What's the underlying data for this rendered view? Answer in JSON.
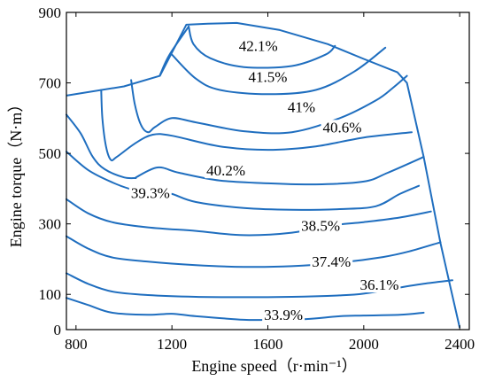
{
  "chart_data": {
    "type": "contour",
    "xlabel": "Engine speed（r·min⁻¹）",
    "ylabel": "Engine torque（N·m）",
    "xlim": [
      760,
      2440
    ],
    "ylim": [
      0,
      900
    ],
    "x_ticks": [
      "800",
      "1200",
      "1600",
      "2000",
      "2400"
    ],
    "y_ticks": [
      "0",
      "100",
      "300",
      "500",
      "700",
      "900"
    ],
    "x_tick_values": [
      800,
      1200,
      1600,
      2000,
      2400
    ],
    "y_tick_values": [
      0,
      100,
      300,
      500,
      700,
      900
    ],
    "line_color": "#1f6ebf",
    "boundary": [
      [
        760,
        664
      ],
      [
        1000,
        690
      ],
      [
        1150,
        720
      ],
      [
        1260,
        865
      ],
      [
        1350,
        868
      ],
      [
        1470,
        870
      ],
      [
        1650,
        850
      ],
      [
        1850,
        810
      ],
      [
        2000,
        768
      ],
      [
        2140,
        730
      ],
      [
        2180,
        700
      ],
      [
        2250,
        490
      ],
      [
        2320,
        245
      ],
      [
        2360,
        125
      ],
      [
        2400,
        5
      ]
    ],
    "series": [
      {
        "label": "42.1%",
        "label_at": [
          1560,
          806
        ],
        "points": [
          [
            1270,
            860
          ],
          [
            1290,
            810
          ],
          [
            1360,
            770
          ],
          [
            1500,
            745
          ],
          [
            1700,
            748
          ],
          [
            1840,
            780
          ],
          [
            1880,
            805
          ]
        ]
      },
      {
        "label": "41.5%",
        "label_at": [
          1600,
          718
        ],
        "points": [
          [
            1150,
            722
          ],
          [
            1190,
            780
          ],
          [
            1270,
            860
          ]
        ]
      },
      {
        "label": "41.5%",
        "label_at": [
          1600,
          718
        ],
        "points": [
          [
            1200,
            780
          ],
          [
            1300,
            712
          ],
          [
            1400,
            680
          ],
          [
            1600,
            668
          ],
          [
            1800,
            680
          ],
          [
            1960,
            732
          ],
          [
            2090,
            800
          ]
        ]
      },
      {
        "label": "41%",
        "label_at": [
          1740,
          632
        ],
        "points": [
          [
            1030,
            708
          ],
          [
            1045,
            640
          ],
          [
            1070,
            582
          ],
          [
            1100,
            560
          ],
          [
            1130,
            575
          ],
          [
            1200,
            600
          ],
          [
            1300,
            588
          ],
          [
            1500,
            563
          ],
          [
            1700,
            560
          ],
          [
            1900,
            600
          ],
          [
            2050,
            650
          ],
          [
            2120,
            685
          ],
          [
            2180,
            720
          ]
        ]
      },
      {
        "label": "40.6%",
        "label_at": [
          1910,
          575
        ],
        "points": [
          [
            905,
            680
          ],
          [
            910,
            600
          ],
          [
            925,
            520
          ],
          [
            945,
            482
          ],
          [
            970,
            490
          ],
          [
            1050,
            530
          ],
          [
            1120,
            553
          ],
          [
            1200,
            550
          ],
          [
            1400,
            520
          ],
          [
            1600,
            510
          ],
          [
            1800,
            520
          ],
          [
            2000,
            545
          ],
          [
            2200,
            560
          ]
        ]
      },
      {
        "label": "40.2%",
        "label_at": [
          1425,
          452
        ],
        "points": [
          [
            760,
            610
          ],
          [
            820,
            556
          ],
          [
            870,
            490
          ],
          [
            920,
            455
          ],
          [
            1000,
            432
          ],
          [
            1050,
            430
          ]
        ]
      },
      {
        "label": "40.2%",
        "label_at": [
          1425,
          452
        ],
        "points": [
          [
            1050,
            432
          ],
          [
            1140,
            460
          ],
          [
            1230,
            445
          ],
          [
            1400,
            423
          ],
          [
            1600,
            415
          ],
          [
            1800,
            412
          ],
          [
            2000,
            420
          ],
          [
            2100,
            445
          ],
          [
            2250,
            490
          ]
        ]
      },
      {
        "label": "39.3%",
        "label_at": [
          1110,
          388
        ],
        "points": [
          [
            760,
            505
          ],
          [
            850,
            453
          ],
          [
            950,
            418
          ],
          [
            1030,
            398
          ],
          [
            1080,
            392
          ],
          [
            1150,
            388
          ],
          [
            1200,
            385
          ],
          [
            1300,
            362
          ],
          [
            1500,
            345
          ],
          [
            1700,
            340
          ],
          [
            1900,
            342
          ],
          [
            2050,
            350
          ],
          [
            2150,
            385
          ],
          [
            2230,
            408
          ]
        ]
      },
      {
        "label": "38.5%",
        "label_at": [
          1820,
          296
        ],
        "points": [
          [
            760,
            370
          ],
          [
            850,
            330
          ],
          [
            950,
            305
          ],
          [
            1100,
            290
          ],
          [
            1300,
            280
          ],
          [
            1500,
            268
          ],
          [
            1700,
            275
          ],
          [
            1870,
            296
          ],
          [
            2000,
            305
          ],
          [
            2150,
            318
          ],
          [
            2280,
            335
          ]
        ]
      },
      {
        "label": "37.4%",
        "label_at": [
          1865,
          193
        ],
        "points": [
          [
            760,
            265
          ],
          [
            850,
            230
          ],
          [
            950,
            205
          ],
          [
            1100,
            193
          ],
          [
            1300,
            183
          ],
          [
            1500,
            178
          ],
          [
            1700,
            180
          ],
          [
            1900,
            190
          ],
          [
            2080,
            206
          ],
          [
            2190,
            222
          ],
          [
            2320,
            248
          ]
        ]
      },
      {
        "label": "36.1%",
        "label_at": [
          2065,
          128
        ],
        "points": [
          [
            760,
            160
          ],
          [
            850,
            130
          ],
          [
            950,
            108
          ],
          [
            1100,
            98
          ],
          [
            1300,
            93
          ],
          [
            1500,
            92
          ],
          [
            1700,
            93
          ],
          [
            1900,
            97
          ],
          [
            2000,
            102
          ],
          [
            2120,
            116
          ],
          [
            2250,
            130
          ],
          [
            2370,
            140
          ]
        ]
      },
      {
        "label": "33.9%",
        "label_at": [
          1665,
          43
        ],
        "points": [
          [
            760,
            90
          ],
          [
            850,
            70
          ],
          [
            950,
            48
          ],
          [
            1100,
            42
          ],
          [
            1200,
            45
          ],
          [
            1300,
            38
          ],
          [
            1500,
            28
          ],
          [
            1600,
            28
          ],
          [
            1760,
            30
          ],
          [
            1900,
            38
          ],
          [
            2000,
            40
          ],
          [
            2150,
            42
          ],
          [
            2250,
            48
          ]
        ]
      }
    ]
  }
}
